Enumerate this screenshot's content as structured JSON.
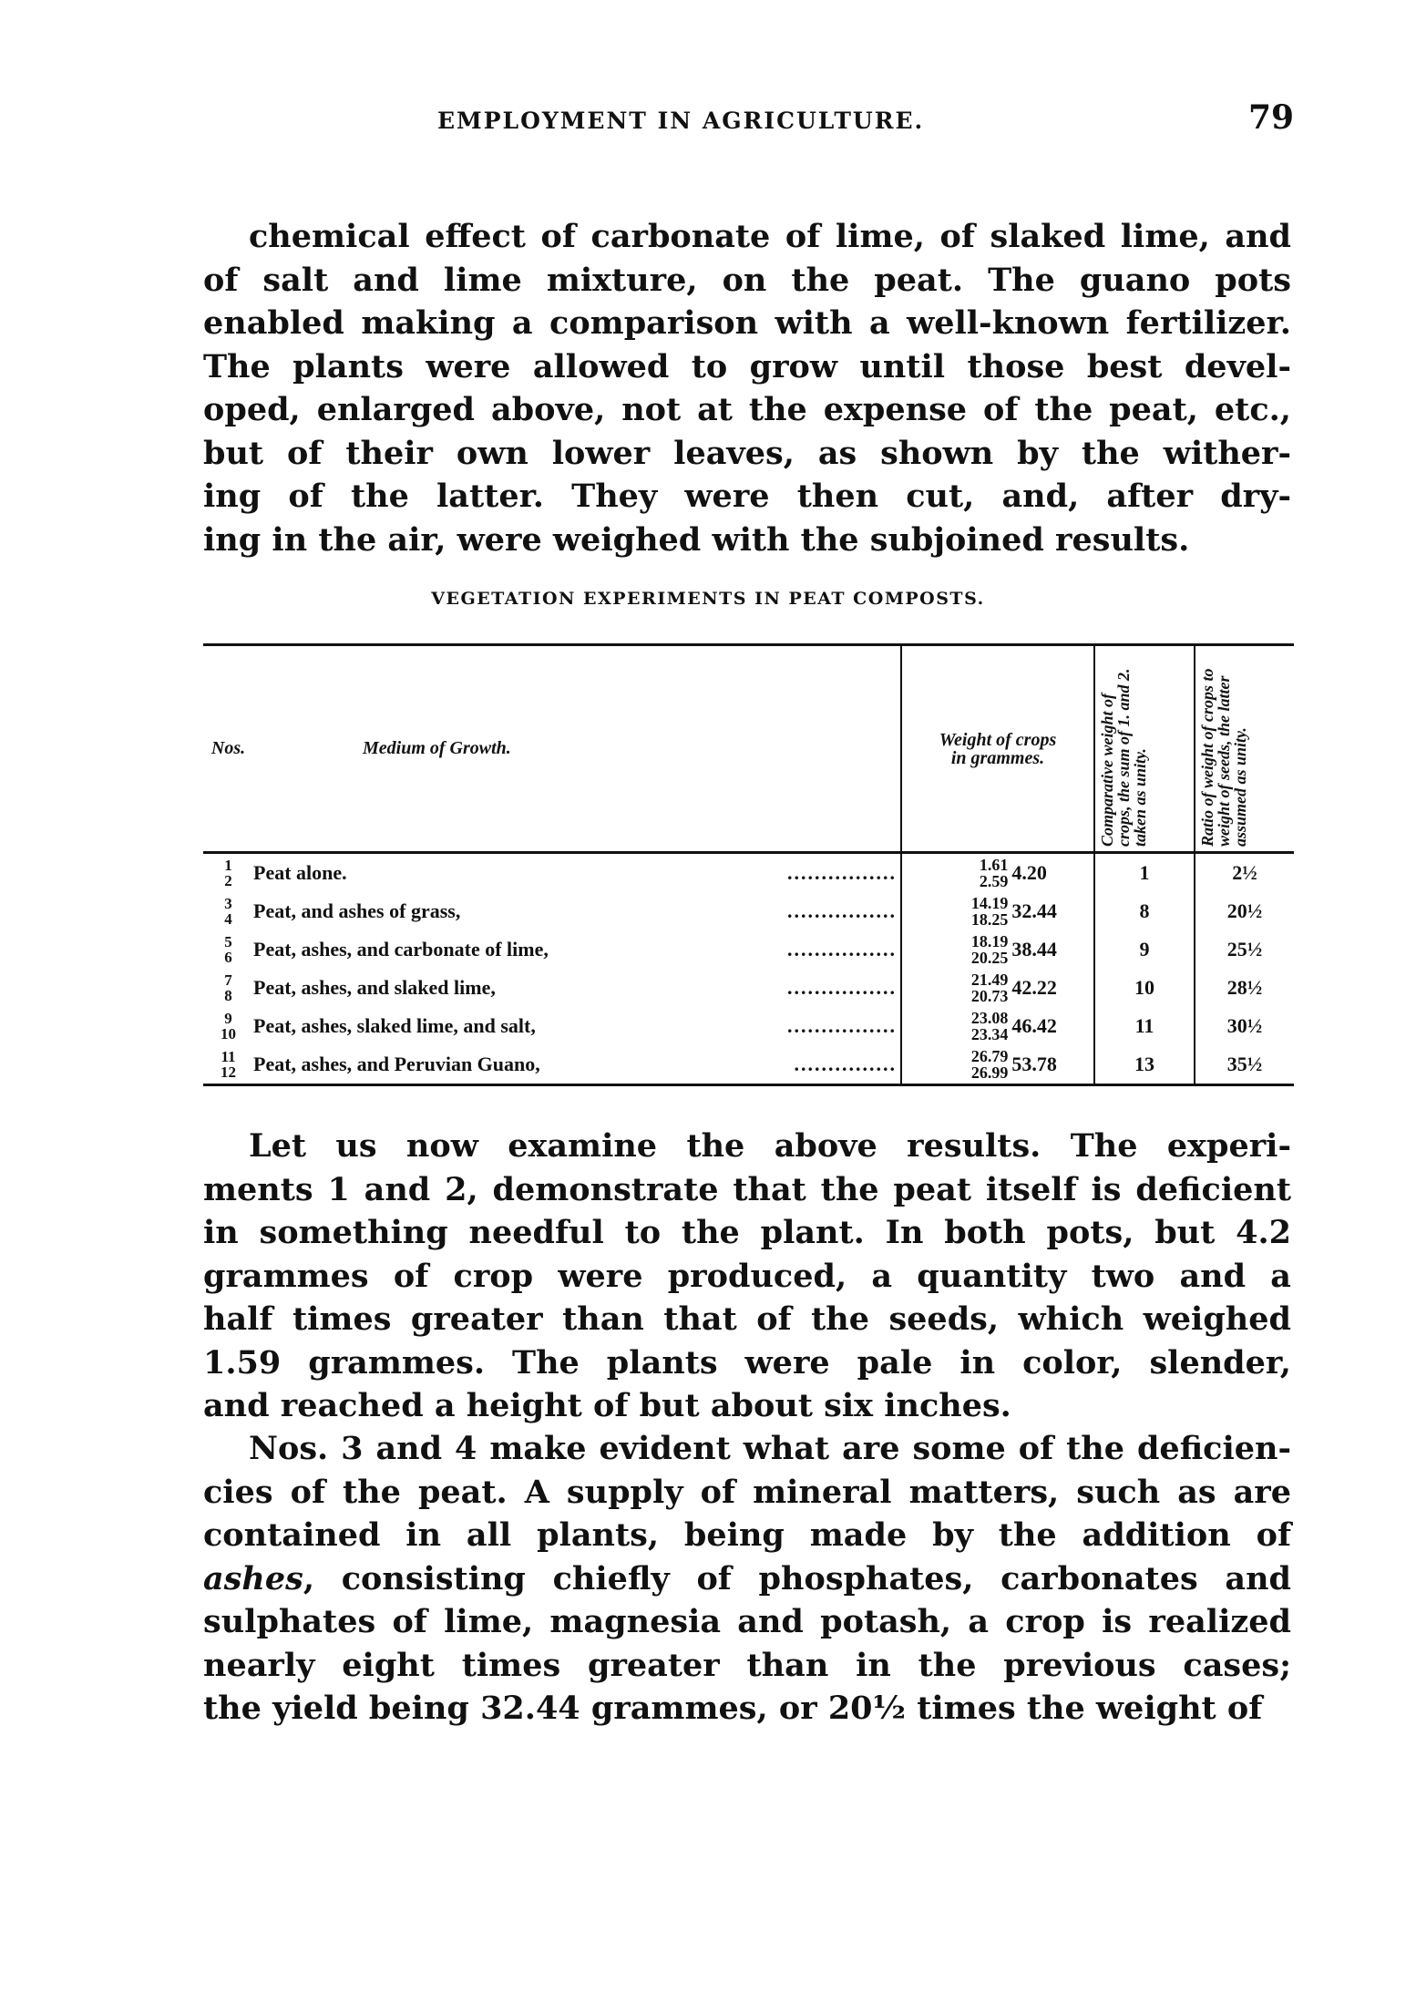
{
  "header": {
    "running_title": "EMPLOYMENT IN AGRICULTURE.",
    "page_number": "79"
  },
  "para1": [
    "chemical effect of carbonate of lime, of slaked lime, and",
    "of salt and lime mixture, on the peat. The guano pots",
    "enabled making a comparison with a well-known fertilizer.",
    "The plants were allowed to grow until those best devel-",
    "oped, enlarged above, not at the expense of the peat, etc.,",
    "but of their own lower leaves, as shown by the wither-",
    "ing of the latter. They were then cut, and, after dry-",
    "ing in the air, were weighed with the subjoined results."
  ],
  "table": {
    "caption": "VEGETATION EXPERIMENTS IN PEAT COMPOSTS.",
    "headers": {
      "nos": "Nos.",
      "medium": "Medium of Growth.",
      "weight": "Weight of crops in grammes.",
      "comparative": "Comparative weight of crops, the sum of 1. and 2. taken as unity.",
      "ratio": "Ratio of weight of crops to weight of seeds, the latter assumed as unity."
    },
    "rows": [
      {
        "n1": "1",
        "n2": "2",
        "medium": "Peat alone.",
        "dots": "................",
        "w1": "1.61",
        "w2": "2.59",
        "sum": "4.20",
        "comparative": "1",
        "ratio": "2½"
      },
      {
        "n1": "3",
        "n2": "4",
        "medium": "Peat, and ashes of grass,",
        "dots": "................",
        "w1": "14.19",
        "w2": "18.25",
        "sum": "32.44",
        "comparative": "8",
        "ratio": "20½"
      },
      {
        "n1": "5",
        "n2": "6",
        "medium": "Peat, ashes, and carbonate of lime,",
        "dots": "................",
        "w1": "18.19",
        "w2": "20.25",
        "sum": "38.44",
        "comparative": "9",
        "ratio": "25½"
      },
      {
        "n1": "7",
        "n2": "8",
        "medium": "Peat, ashes, and slaked lime,",
        "dots": "................",
        "w1": "21.49",
        "w2": "20.73",
        "sum": "42.22",
        "comparative": "10",
        "ratio": "28½"
      },
      {
        "n1": "9",
        "n2": "10",
        "medium": "Peat, ashes, slaked lime, and salt,",
        "dots": "................",
        "w1": "23.08",
        "w2": "23.34",
        "sum": "46.42",
        "comparative": "11",
        "ratio": "30½"
      },
      {
        "n1": "11",
        "n2": "12",
        "medium": "Peat, ashes, and Peruvian Guano,",
        "dots": "...............",
        "w1": "26.79",
        "w2": "26.99",
        "sum": "53.78",
        "comparative": "13",
        "ratio": "35½"
      }
    ]
  },
  "para2": [
    "Let us now examine the above results. The experi-",
    "ments 1 and 2, demonstrate that the peat itself is deficient",
    "in something needful to the plant. In both pots, but 4.2",
    "grammes of crop were produced, a quantity two and a",
    "half times greater than that of the seeds, which weighed",
    "1.59 grammes. The plants were pale in color, slender,",
    "and reached a height of but about six inches."
  ],
  "para3": [
    "Nos. 3 and 4 make evident what are some of the deficien-",
    "cies of the peat. A supply of mineral matters, such as are",
    "contained in all plants, being made by the addition of",
    "ashes, consisting chiefly of phosphates, carbonates and",
    "sulphates of lime, magnesia and potash, a crop is realized",
    "nearly eight times greater than in the previous cases;",
    "the yield being 32.44 grammes, or 20½ times the weight of"
  ]
}
